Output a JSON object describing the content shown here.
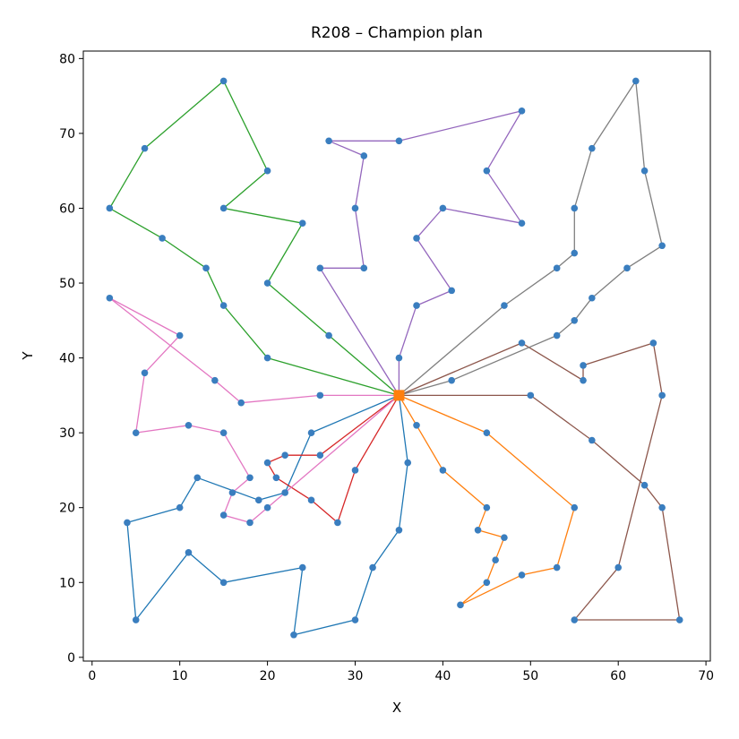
{
  "chart_data": {
    "type": "line",
    "title": "R208 – Champion plan",
    "xlabel": "X",
    "ylabel": "Y",
    "xlim": [
      -1,
      70.5
    ],
    "ylim": [
      -0.5,
      81
    ],
    "xticks": [
      0,
      10,
      20,
      30,
      40,
      50,
      60,
      70
    ],
    "yticks": [
      0,
      10,
      20,
      30,
      40,
      50,
      60,
      70,
      80
    ],
    "grid": false,
    "depot": {
      "x": 35,
      "y": 35,
      "color": "#ff7f0e"
    },
    "point_color": "#3a7ebf",
    "routes": [
      {
        "color": "#1f77b4",
        "points": [
          [
            35,
            35
          ],
          [
            25,
            30
          ],
          [
            22,
            22
          ],
          [
            19,
            21
          ],
          [
            12,
            24
          ],
          [
            10,
            20
          ],
          [
            4,
            18
          ],
          [
            5,
            5
          ],
          [
            11,
            14
          ],
          [
            15,
            10
          ],
          [
            24,
            12
          ],
          [
            23,
            3
          ],
          [
            30,
            5
          ],
          [
            32,
            12
          ],
          [
            35,
            17
          ],
          [
            36,
            26
          ],
          [
            35,
            35
          ]
        ]
      },
      {
        "color": "#ff7f0e",
        "points": [
          [
            35,
            35
          ],
          [
            37,
            31
          ],
          [
            40,
            25
          ],
          [
            45,
            20
          ],
          [
            44,
            17
          ],
          [
            47,
            16
          ],
          [
            46,
            13
          ],
          [
            45,
            10
          ],
          [
            42,
            7
          ],
          [
            49,
            11
          ],
          [
            53,
            12
          ],
          [
            55,
            20
          ],
          [
            45,
            30
          ],
          [
            35,
            35
          ]
        ]
      },
      {
        "color": "#2ca02c",
        "points": [
          [
            35,
            35
          ],
          [
            20,
            40
          ],
          [
            15,
            47
          ],
          [
            13,
            52
          ],
          [
            8,
            56
          ],
          [
            2,
            60
          ],
          [
            6,
            68
          ],
          [
            15,
            77
          ],
          [
            20,
            65
          ],
          [
            15,
            60
          ],
          [
            24,
            58
          ],
          [
            20,
            50
          ],
          [
            27,
            43
          ],
          [
            35,
            35
          ]
        ]
      },
      {
        "color": "#d62728",
        "points": [
          [
            35,
            35
          ],
          [
            26,
            27
          ],
          [
            22,
            27
          ],
          [
            20,
            26
          ],
          [
            21,
            24
          ],
          [
            25,
            21
          ],
          [
            28,
            18
          ],
          [
            30,
            25
          ],
          [
            35,
            35
          ]
        ]
      },
      {
        "color": "#9467bd",
        "points": [
          [
            35,
            35
          ],
          [
            26,
            52
          ],
          [
            31,
            52
          ],
          [
            30,
            60
          ],
          [
            31,
            67
          ],
          [
            27,
            69
          ],
          [
            35,
            69
          ],
          [
            49,
            73
          ],
          [
            45,
            65
          ],
          [
            49,
            58
          ],
          [
            40,
            60
          ],
          [
            37,
            56
          ],
          [
            41,
            49
          ],
          [
            37,
            47
          ],
          [
            35,
            40
          ],
          [
            35,
            35
          ]
        ]
      },
      {
        "color": "#8c564b",
        "points": [
          [
            35,
            35
          ],
          [
            50,
            35
          ],
          [
            57,
            29
          ],
          [
            63,
            23
          ],
          [
            65,
            20
          ],
          [
            67,
            5
          ],
          [
            55,
            5
          ],
          [
            60,
            12
          ],
          [
            65,
            35
          ],
          [
            64,
            42
          ],
          [
            56,
            39
          ],
          [
            56,
            37
          ],
          [
            49,
            42
          ],
          [
            35,
            35
          ]
        ]
      },
      {
        "color": "#e377c2",
        "points": [
          [
            35,
            35
          ],
          [
            20,
            20
          ],
          [
            18,
            18
          ],
          [
            15,
            19
          ],
          [
            16,
            22
          ],
          [
            18,
            24
          ],
          [
            15,
            30
          ],
          [
            11,
            31
          ],
          [
            5,
            30
          ],
          [
            6,
            38
          ],
          [
            10,
            43
          ],
          [
            2,
            48
          ],
          [
            14,
            37
          ],
          [
            17,
            34
          ],
          [
            26,
            35
          ],
          [
            35,
            35
          ]
        ]
      },
      {
        "color": "#7f7f7f",
        "points": [
          [
            35,
            35
          ],
          [
            41,
            37
          ],
          [
            53,
            43
          ],
          [
            55,
            45
          ],
          [
            57,
            48
          ],
          [
            61,
            52
          ],
          [
            65,
            55
          ],
          [
            63,
            65
          ],
          [
            62,
            77
          ],
          [
            57,
            68
          ],
          [
            55,
            60
          ],
          [
            55,
            54
          ],
          [
            53,
            52
          ],
          [
            47,
            47
          ],
          [
            35,
            35
          ]
        ]
      }
    ]
  }
}
